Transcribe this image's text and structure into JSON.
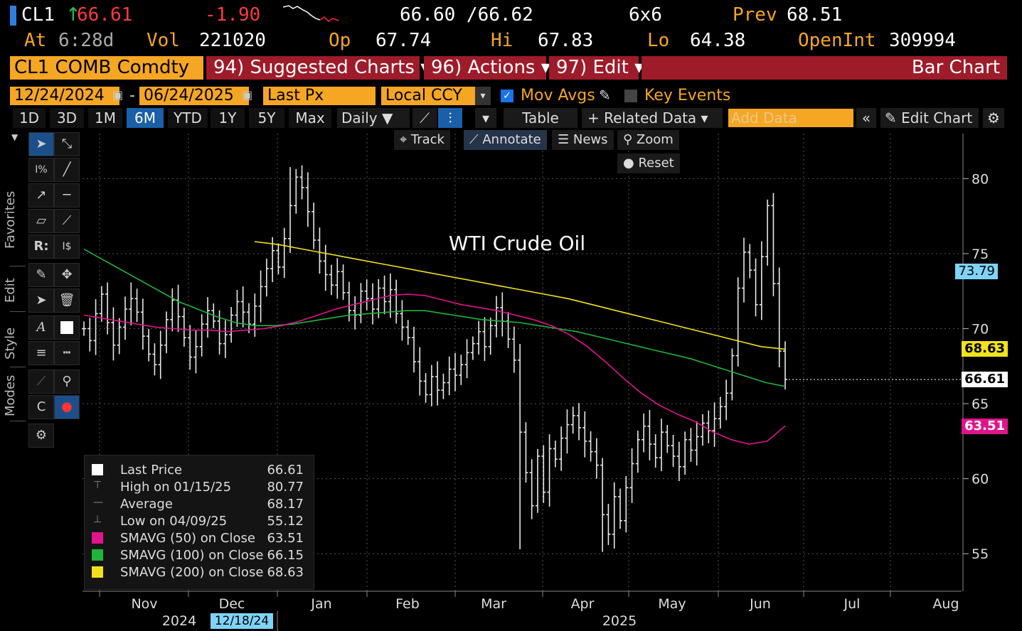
{
  "quote": {
    "ticker": "CL1",
    "last": "66.61",
    "change": "-1.90",
    "bid_ask": "66.60 /66.62",
    "size": "6x6",
    "prev_label": "Prev",
    "prev": "68.51",
    "at_label": "At",
    "at_time": "6:28d",
    "vol_label": "Vol",
    "vol": "221020",
    "op_label": "Op",
    "op": "67.74",
    "hi_label": "Hi",
    "hi": "67.83",
    "lo_label": "Lo",
    "lo": "64.38",
    "oi_label": "OpenInt",
    "oi": "309994"
  },
  "menubar": {
    "security": "CL1 COMB Comdty",
    "suggested": "94) Suggested Charts ▾",
    "actions": "96) Actions ▾",
    "edit": "97) Edit ▾",
    "chart_type": "Bar Chart"
  },
  "settings": {
    "start_date": "12/24/2024",
    "end_date": "06/24/2025",
    "field": "Last Px",
    "currency": "Local CCY",
    "mov_avgs": "Mov Avgs",
    "key_events": "Key Events"
  },
  "ranges": [
    "1D",
    "3D",
    "1M",
    "6M",
    "YTD",
    "1Y",
    "5Y",
    "Max"
  ],
  "active_range": "6M",
  "toolbar": {
    "period": "Daily ▼",
    "table": "Table",
    "related": "+ Related Data ▾",
    "add_data_placeholder": "Add Data",
    "edit_chart": "Edit Chart"
  },
  "chart_controls": {
    "track": "Track",
    "annotate": "Annotate",
    "news": "News",
    "zoom": "Zoom",
    "reset": "Reset"
  },
  "side_labels": {
    "favorites": "Favorites",
    "edit": "Edit",
    "style": "Style",
    "modes": "Modes"
  },
  "legend": [
    {
      "label": "Last Price",
      "value": "66.61",
      "color": "#ffffff"
    },
    {
      "label": "High on 01/15/25",
      "value": "80.77",
      "color": ""
    },
    {
      "label": "Average",
      "value": "68.17",
      "color": ""
    },
    {
      "label": "Low on 04/09/25",
      "value": "55.12",
      "color": ""
    },
    {
      "label": "SMAVG (50)  on Close",
      "value": "63.51",
      "color": "#e0148c"
    },
    {
      "label": "SMAVG (100)  on Close",
      "value": "66.15",
      "color": "#1fb53a"
    },
    {
      "label": "SMAVG (200)  on Close",
      "value": "68.63",
      "color": "#f2e21a"
    }
  ],
  "price_tags": [
    {
      "value": "73.79",
      "color": "#7fd3f7",
      "text_color": "#000"
    },
    {
      "value": "68.63",
      "color": "#f2e21a",
      "text_color": "#000"
    },
    {
      "value": "66.61",
      "color": "#ffffff",
      "text_color": "#000"
    },
    {
      "value": "63.51",
      "color": "#e0148c",
      "text_color": "#fff"
    }
  ],
  "chart_data": {
    "type": "bar",
    "title": "WTI Crude Oil",
    "y_ticks": [
      "80",
      "75",
      "70",
      "65",
      "60",
      "55"
    ],
    "ylim": [
      52.5,
      83
    ],
    "x_months": [
      "Nov",
      "Dec",
      "Jan",
      "Feb",
      "Mar",
      "Apr",
      "May",
      "Jun",
      "Jul",
      "Aug"
    ],
    "x_years": [
      "2024",
      "2025"
    ],
    "crosshair_date": "12/18/24",
    "close_series": [
      70.0,
      69.2,
      71.0,
      72.3,
      70.4,
      68.9,
      70.1,
      71.3,
      72.0,
      71.1,
      69.5,
      68.3,
      67.6,
      68.9,
      70.6,
      71.9,
      70.8,
      69.4,
      68.1,
      68.8,
      70.3,
      71.2,
      70.5,
      69.0,
      69.6,
      70.9,
      71.8,
      71.1,
      70.3,
      71.5,
      72.8,
      74.0,
      75.2,
      74.1,
      76.0,
      78.2,
      80.1,
      79.4,
      77.8,
      75.9,
      74.5,
      73.6,
      72.9,
      73.8,
      72.4,
      71.2,
      70.9,
      72.5,
      72.0,
      71.3,
      72.7,
      71.8,
      72.6,
      71.0,
      70.1,
      69.4,
      67.8,
      66.5,
      65.6,
      66.8,
      65.9,
      66.4,
      67.3,
      66.9,
      67.6,
      68.4,
      69.0,
      69.8,
      68.8,
      70.2,
      71.4,
      70.5,
      69.3,
      67.9,
      63.1,
      60.4,
      58.2,
      61.5,
      59.1,
      62.0,
      61.3,
      62.7,
      63.6,
      64.2,
      63.4,
      62.5,
      61.8,
      60.9,
      57.6,
      56.3,
      58.8,
      57.2,
      59.4,
      61.0,
      62.6,
      63.5,
      62.3,
      61.4,
      63.1,
      62.2,
      61.5,
      60.8,
      62.6,
      61.9,
      62.8,
      63.7,
      63.2,
      64.0,
      64.8,
      65.7,
      68.2,
      72.7,
      75.1,
      73.9,
      71.6,
      74.8,
      78.2,
      73.0,
      68.5,
      66.61
    ],
    "sma50": [
      70.9,
      70.7,
      70.5,
      70.3,
      70.1,
      70.0,
      69.9,
      69.9,
      69.8,
      69.9,
      70.0,
      70.2,
      70.5,
      70.9,
      71.3,
      71.6,
      71.9,
      72.2,
      72.3,
      72.2,
      71.9,
      71.6,
      71.4,
      71.2,
      70.9,
      70.6,
      70.2,
      69.6,
      68.8,
      67.8,
      66.7,
      65.7,
      64.9,
      64.3,
      63.8,
      63.1,
      62.6,
      62.3,
      62.5,
      63.51
    ],
    "sma100": [
      75.3,
      74.6,
      73.9,
      73.2,
      72.5,
      71.8,
      71.3,
      70.8,
      70.4,
      70.2,
      70.2,
      70.3,
      70.5,
      70.7,
      70.9,
      71.0,
      71.1,
      71.2,
      71.2,
      71.0,
      70.8,
      70.6,
      70.5,
      70.4,
      70.2,
      70.0,
      69.8,
      69.5,
      69.2,
      68.9,
      68.6,
      68.3,
      68.0,
      67.6,
      67.2,
      66.8,
      66.4,
      66.15
    ],
    "sma200": [
      75.8,
      75.6,
      75.3,
      75.0,
      74.7,
      74.4,
      74.1,
      73.8,
      73.5,
      73.2,
      72.9,
      72.6,
      72.3,
      72.0,
      71.6,
      71.2,
      70.8,
      70.4,
      70.0,
      69.6,
      69.2,
      68.8,
      68.63
    ]
  }
}
